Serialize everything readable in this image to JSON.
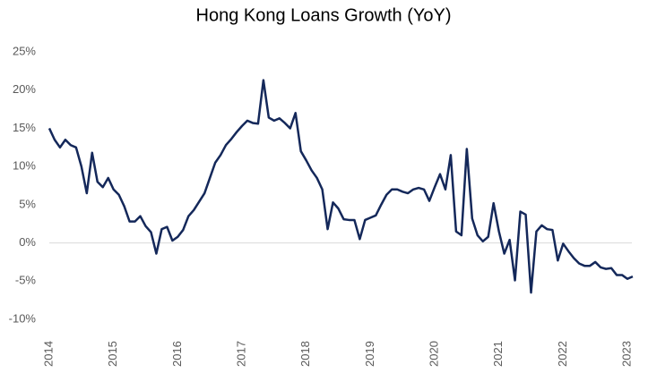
{
  "chart_data": {
    "type": "line",
    "title": "Hong Kong Loans Growth (YoY)",
    "categories": [
      "2014",
      null,
      null,
      null,
      null,
      null,
      null,
      null,
      null,
      null,
      null,
      null,
      "2015",
      null,
      null,
      null,
      null,
      null,
      null,
      null,
      null,
      null,
      null,
      null,
      "2016",
      null,
      null,
      null,
      null,
      null,
      null,
      null,
      null,
      null,
      null,
      null,
      "2017",
      null,
      null,
      null,
      null,
      null,
      null,
      null,
      null,
      null,
      null,
      null,
      "2018",
      null,
      null,
      null,
      null,
      null,
      null,
      null,
      null,
      null,
      null,
      null,
      "2019",
      null,
      null,
      null,
      null,
      null,
      null,
      null,
      null,
      null,
      null,
      null,
      "2020",
      null,
      null,
      null,
      null,
      null,
      null,
      null,
      null,
      null,
      null,
      null,
      "2021",
      null,
      null,
      null,
      null,
      null,
      null,
      null,
      null,
      null,
      null,
      null,
      "2022",
      null,
      null,
      null,
      null,
      null,
      null,
      null,
      null,
      null,
      null,
      null,
      "2023",
      null
    ],
    "values": [
      15,
      13.5,
      12.5,
      13.5,
      12.8,
      12.5,
      10,
      6.5,
      11.8,
      8,
      7.3,
      8.5,
      7,
      6.3,
      4.8,
      2.8,
      2.8,
      3.5,
      2.2,
      1.4,
      -1.4,
      1.8,
      2.1,
      0.3,
      0.8,
      1.7,
      3.5,
      4.3,
      5.4,
      6.5,
      8.5,
      10.5,
      11.5,
      12.8,
      13.6,
      14.5,
      15.3,
      16,
      15.7,
      15.6,
      21.3,
      16.4,
      16,
      16.3,
      15.7,
      15,
      17,
      12,
      10.8,
      9.5,
      8.5,
      7,
      1.8,
      5.3,
      4.5,
      3.1,
      3,
      3,
      0.5,
      3,
      3.3,
      3.6,
      5,
      6.3,
      7,
      7,
      6.7,
      6.5,
      7,
      7.2,
      7,
      5.5,
      7.3,
      9,
      7,
      11.5,
      1.5,
      1,
      12.3,
      3.2,
      1,
      0.2,
      0.8,
      5.2,
      1.5,
      -1.4,
      0.4,
      -4.9,
      4.1,
      3.7,
      -6.5,
      1.5,
      2.3,
      1.8,
      1.7,
      -2.3,
      -0.1,
      -1.1,
      -2,
      -2.7,
      -3,
      -3,
      -2.5,
      -3.2,
      -3.4,
      -3.3,
      -4.2,
      -4.2,
      -4.7,
      -4.4
    ],
    "color": "#14285a",
    "ylim": [
      -10,
      25
    ],
    "yticks": [
      {
        "value": -10,
        "label": "-10%"
      },
      {
        "value": -5,
        "label": "-5%"
      },
      {
        "value": 0,
        "label": "0%"
      },
      {
        "value": 5,
        "label": "5%"
      },
      {
        "value": 10,
        "label": "10%"
      },
      {
        "value": 15,
        "label": "15%"
      },
      {
        "value": 20,
        "label": "20%"
      },
      {
        "value": 25,
        "label": "25%"
      }
    ],
    "zero_line": true
  }
}
